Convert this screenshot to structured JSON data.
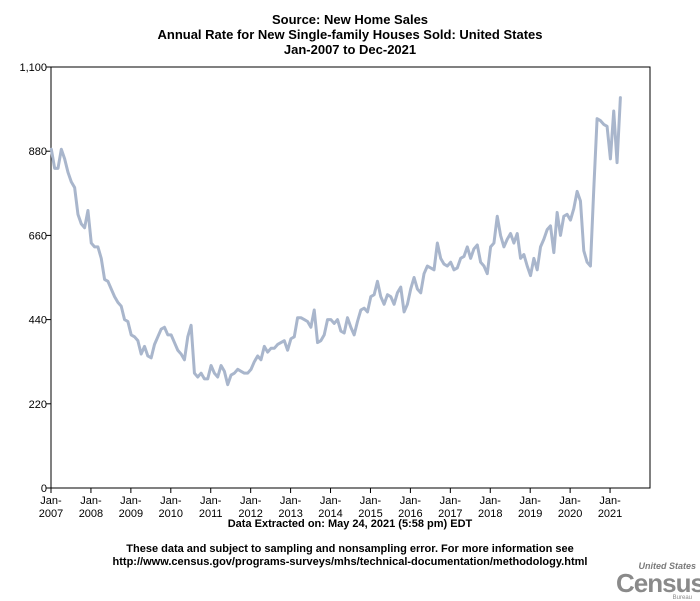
{
  "header": {
    "line1": "Source: New Home Sales",
    "line2": "Annual Rate for New Single-family Houses Sold: United States",
    "line3": "Jan-2007 to Dec-2021"
  },
  "footer": {
    "extracted": "Data Extracted on: May 24, 2021 (5:58 pm) EDT",
    "disclaimer1": "These data and subject to sampling and nonsampling error. For more information see",
    "disclaimer2": "http://www.census.gov/programs-surveys/mhs/technical-documentation/methodology.html"
  },
  "logo": {
    "top": "United States",
    "main": "Census",
    "bottom": "Bureau"
  },
  "colors": {
    "line": "#a9b6cc",
    "axis": "#000000",
    "grid_border": "#000000"
  },
  "chart_data": {
    "type": "line",
    "title": "Annual Rate for New Single-family Houses Sold: United States",
    "ylim": [
      0,
      1100
    ],
    "yticks": [
      0,
      220,
      440,
      660,
      880,
      1100
    ],
    "ytick_labels": [
      "0",
      "220",
      "440",
      "660",
      "880",
      "1,100"
    ],
    "xticks": [
      "Jan-2007",
      "Jan-2008",
      "Jan-2009",
      "Jan-2010",
      "Jan-2011",
      "Jan-2012",
      "Jan-2013",
      "Jan-2014",
      "Jan-2015",
      "Jan-2016",
      "Jan-2017",
      "Jan-2018",
      "Jan-2019",
      "Jan-2020",
      "Jan-2021"
    ],
    "xtick_labels": [
      [
        "Jan-",
        "2007"
      ],
      [
        "Jan-",
        "2008"
      ],
      [
        "Jan-",
        "2009"
      ],
      [
        "Jan-",
        "2010"
      ],
      [
        "Jan-",
        "2011"
      ],
      [
        "Jan-",
        "2012"
      ],
      [
        "Jan-",
        "2013"
      ],
      [
        "Jan-",
        "2014"
      ],
      [
        "Jan-",
        "2015"
      ],
      [
        "Jan-",
        "2016"
      ],
      [
        "Jan-",
        "2017"
      ],
      [
        "Jan-",
        "2018"
      ],
      [
        "Jan-",
        "2019"
      ],
      [
        "Jan-",
        "2020"
      ],
      [
        "Jan-",
        "2021"
      ]
    ],
    "x_range": [
      "Jan-2007",
      "Dec-2021"
    ],
    "series": [
      {
        "x_start": "Jan-2007",
        "frequency": "monthly",
        "values": [
          885,
          835,
          835,
          885,
          860,
          825,
          800,
          785,
          715,
          690,
          680,
          725,
          640,
          630,
          630,
          600,
          545,
          540,
          520,
          500,
          485,
          475,
          440,
          435,
          400,
          395,
          385,
          350,
          370,
          345,
          340,
          375,
          395,
          415,
          420,
          400,
          400,
          380,
          360,
          350,
          335,
          395,
          425,
          300,
          290,
          300,
          285,
          285,
          320,
          300,
          290,
          320,
          305,
          270,
          295,
          300,
          310,
          305,
          300,
          300,
          310,
          330,
          345,
          335,
          370,
          355,
          365,
          365,
          375,
          380,
          385,
          360,
          390,
          395,
          445,
          445,
          440,
          435,
          420,
          465,
          380,
          385,
          400,
          440,
          440,
          430,
          440,
          410,
          405,
          445,
          420,
          400,
          435,
          465,
          470,
          460,
          500,
          505,
          540,
          500,
          480,
          505,
          500,
          480,
          510,
          525,
          460,
          480,
          520,
          550,
          520,
          510,
          560,
          580,
          575,
          570,
          640,
          600,
          585,
          580,
          590,
          570,
          575,
          600,
          605,
          630,
          600,
          625,
          635,
          590,
          580,
          560,
          630,
          640,
          710,
          660,
          630,
          650,
          665,
          640,
          665,
          600,
          610,
          580,
          555,
          600,
          570,
          630,
          650,
          675,
          685,
          615,
          720,
          660,
          710,
          715,
          700,
          730,
          775,
          750,
          620,
          590,
          580,
          780,
          965,
          960,
          950,
          945,
          860,
          985,
          850,
          1020
        ]
      }
    ],
    "grid": false,
    "legend": "none"
  }
}
